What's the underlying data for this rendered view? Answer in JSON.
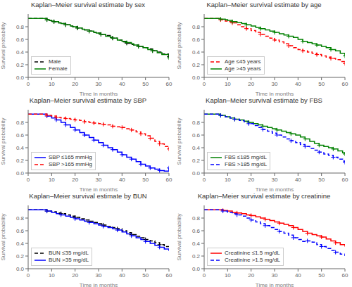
{
  "chart_data": [
    {
      "type": "step",
      "title": "Kaplan–Meier survival estimate by sex",
      "x_label": "Time in months",
      "y_label": "Survival probability",
      "x": [
        0,
        8,
        9,
        10,
        11,
        13,
        14,
        16,
        18,
        19,
        21,
        23,
        24,
        26,
        28,
        29,
        31,
        33,
        35,
        36,
        38,
        40,
        42,
        44,
        45,
        47,
        49,
        51,
        53,
        55,
        57,
        60
      ],
      "censored_x": [
        8,
        11,
        16,
        21,
        26,
        31,
        36,
        42,
        47,
        53,
        60
      ],
      "series": [
        {
          "name": "Male",
          "color": "black",
          "line_style": "dashed",
          "marker": "plus",
          "values": [
            0.93,
            0.91,
            0.9,
            0.89,
            0.88,
            0.86,
            0.85,
            0.83,
            0.81,
            0.8,
            0.78,
            0.76,
            0.75,
            0.73,
            0.71,
            0.7,
            0.68,
            0.66,
            0.63,
            0.62,
            0.59,
            0.56,
            0.54,
            0.52,
            0.51,
            0.49,
            0.47,
            0.45,
            0.42,
            0.4,
            0.37,
            0.33
          ]
        },
        {
          "name": "Female",
          "color": "green",
          "line_style": "solid",
          "marker": "plus",
          "values": [
            0.93,
            0.91,
            0.9,
            0.89,
            0.88,
            0.86,
            0.85,
            0.83,
            0.81,
            0.8,
            0.78,
            0.76,
            0.75,
            0.73,
            0.71,
            0.7,
            0.68,
            0.65,
            0.63,
            0.62,
            0.59,
            0.57,
            0.55,
            0.53,
            0.51,
            0.49,
            0.47,
            0.44,
            0.42,
            0.39,
            0.36,
            0.31
          ]
        }
      ],
      "xlim": [
        0,
        60
      ],
      "ylim": [
        0,
        1
      ],
      "xticks": [
        0,
        10,
        20,
        30,
        40,
        50,
        60
      ],
      "yticks": [
        {
          "value": 0,
          "label": "0.0"
        },
        0.2,
        0.4,
        0.6,
        0.8
      ],
      "legend": "lower left",
      "grid": false
    },
    {
      "type": "step",
      "title": "Kaplan–Meier survival estimate by age",
      "x_label": "Time in months",
      "y_label": "Survival probability",
      "x": [
        0,
        7,
        9,
        10,
        12,
        14,
        16,
        18,
        20,
        22,
        24,
        26,
        28,
        30,
        32,
        34,
        36,
        38,
        40,
        42,
        44,
        46,
        48,
        50,
        52,
        54,
        56,
        58,
        60
      ],
      "censored_x": [
        7,
        12,
        18,
        24,
        30,
        36,
        42,
        48,
        54,
        60
      ],
      "series": [
        {
          "name": "Age ≤45 years",
          "color": "red",
          "line_style": "dashed",
          "marker": "plus",
          "values": [
            0.93,
            0.91,
            0.89,
            0.88,
            0.86,
            0.83,
            0.8,
            0.77,
            0.74,
            0.71,
            0.68,
            0.65,
            0.62,
            0.59,
            0.56,
            0.53,
            0.5,
            0.47,
            0.44,
            0.42,
            0.4,
            0.38,
            0.36,
            0.34,
            0.32,
            0.3,
            0.28,
            0.25,
            0.22
          ]
        },
        {
          "name": "Age >45 years",
          "color": "green",
          "line_style": "solid",
          "marker": "plus",
          "values": [
            0.93,
            0.92,
            0.91,
            0.9,
            0.88,
            0.87,
            0.85,
            0.83,
            0.81,
            0.79,
            0.77,
            0.75,
            0.73,
            0.71,
            0.69,
            0.67,
            0.65,
            0.63,
            0.6,
            0.57,
            0.55,
            0.53,
            0.51,
            0.49,
            0.47,
            0.44,
            0.42,
            0.38,
            0.34
          ]
        }
      ],
      "xlim": [
        0,
        60
      ],
      "ylim": [
        0,
        1
      ],
      "xticks": [
        0,
        10,
        20,
        30,
        40,
        50,
        60
      ],
      "yticks": [
        {
          "value": 0,
          "label": "0.0"
        },
        0.2,
        0.4,
        0.6,
        0.8
      ],
      "legend": "lower left",
      "grid": false
    },
    {
      "type": "step",
      "title": "Kaplan–Meier survival estimate by SBP",
      "x_label": "Time in months",
      "y_label": "Survival probability",
      "x": [
        0,
        8,
        10,
        12,
        14,
        16,
        18,
        20,
        22,
        24,
        26,
        28,
        30,
        32,
        34,
        36,
        38,
        40,
        42,
        44,
        46,
        48,
        50,
        52,
        54,
        56,
        58,
        60
      ],
      "censored_x": [
        8,
        12,
        16,
        20,
        24,
        28,
        32,
        36,
        40,
        44,
        48,
        52,
        56,
        60
      ],
      "series": [
        {
          "name": "SBP ≤165 mmHg",
          "color": "blue",
          "line_style": "solid",
          "marker": "plus",
          "values": [
            0.93,
            0.9,
            0.87,
            0.84,
            0.8,
            0.76,
            0.72,
            0.68,
            0.64,
            0.6,
            0.56,
            0.52,
            0.48,
            0.44,
            0.4,
            0.37,
            0.33,
            0.29,
            0.25,
            0.22,
            0.18,
            0.14,
            0.11,
            0.08,
            0.06,
            0.04,
            0.03,
            0.08
          ]
        },
        {
          "name": "SBP >165 mmHg",
          "color": "red",
          "line_style": "dashed",
          "marker": "plus",
          "values": [
            0.93,
            0.91,
            0.9,
            0.88,
            0.87,
            0.86,
            0.85,
            0.84,
            0.83,
            0.81,
            0.8,
            0.79,
            0.78,
            0.77,
            0.76,
            0.74,
            0.73,
            0.72,
            0.7,
            0.68,
            0.65,
            0.62,
            0.59,
            0.55,
            0.5,
            0.46,
            0.42,
            0.38
          ]
        }
      ],
      "xlim": [
        0,
        60
      ],
      "ylim": [
        0,
        1
      ],
      "xticks": [
        0,
        10,
        20,
        30,
        40,
        50,
        60
      ],
      "yticks": [
        {
          "value": 0,
          "label": "0.0"
        },
        0.2,
        0.4,
        0.6,
        0.8
      ],
      "legend": "lower left",
      "grid": false
    },
    {
      "type": "step",
      "title": "Kaplan–Meier survival estimate by FBS",
      "x_label": "Time in months",
      "y_label": "Survival probability",
      "x": [
        0,
        7,
        9,
        11,
        13,
        15,
        17,
        19,
        21,
        23,
        25,
        27,
        29,
        31,
        33,
        35,
        37,
        39,
        41,
        43,
        45,
        47,
        49,
        51,
        53,
        55,
        57,
        59,
        60
      ],
      "censored_x": [
        7,
        13,
        19,
        25,
        31,
        37,
        43,
        49,
        55,
        60
      ],
      "series": [
        {
          "name": "FBS ≤185 mg/dL",
          "color": "green",
          "line_style": "solid",
          "marker": "plus",
          "values": [
            0.93,
            0.91,
            0.89,
            0.87,
            0.85,
            0.84,
            0.82,
            0.8,
            0.78,
            0.76,
            0.74,
            0.72,
            0.7,
            0.68,
            0.66,
            0.64,
            0.62,
            0.6,
            0.57,
            0.54,
            0.5,
            0.47,
            0.44,
            0.42,
            0.4,
            0.38,
            0.35,
            0.32,
            0.3
          ]
        },
        {
          "name": "FBS >185 mg/dL",
          "color": "blue",
          "line_style": "dashed",
          "marker": "plus",
          "values": [
            0.93,
            0.91,
            0.89,
            0.87,
            0.85,
            0.83,
            0.81,
            0.78,
            0.75,
            0.72,
            0.69,
            0.66,
            0.63,
            0.6,
            0.57,
            0.54,
            0.51,
            0.48,
            0.45,
            0.42,
            0.39,
            0.36,
            0.33,
            0.3,
            0.28,
            0.25,
            0.22,
            0.19,
            0.17
          ]
        }
      ],
      "xlim": [
        0,
        60
      ],
      "ylim": [
        0,
        1
      ],
      "xticks": [
        0,
        10,
        20,
        30,
        40,
        50,
        60
      ],
      "yticks": [
        {
          "value": 0,
          "label": "0.0"
        },
        0.2,
        0.4,
        0.6,
        0.8
      ],
      "legend": "lower left",
      "grid": false
    },
    {
      "type": "step",
      "title": "Kaplan–Meier survival estimate by BUN",
      "x_label": "Time in months",
      "y_label": "Survival probability",
      "x": [
        0,
        8,
        10,
        12,
        14,
        16,
        18,
        20,
        22,
        24,
        26,
        28,
        30,
        32,
        34,
        36,
        38,
        40,
        42,
        44,
        46,
        48,
        50,
        52,
        54,
        56,
        58,
        60
      ],
      "censored_x": [
        8,
        14,
        20,
        26,
        32,
        38,
        44,
        50,
        56
      ],
      "series": [
        {
          "name": "BUN ≤35 mg/dL",
          "color": "black",
          "line_style": "dashed",
          "marker": "plus",
          "values": [
            0.93,
            0.91,
            0.9,
            0.88,
            0.87,
            0.85,
            0.83,
            0.81,
            0.79,
            0.77,
            0.75,
            0.73,
            0.71,
            0.69,
            0.67,
            0.65,
            0.63,
            0.6,
            0.57,
            0.54,
            0.51,
            0.49,
            0.46,
            0.44,
            0.41,
            0.38,
            0.35,
            0.32
          ]
        },
        {
          "name": "BUN >35 mg/dL",
          "color": "blue",
          "line_style": "solid",
          "marker": "plus",
          "values": [
            0.93,
            0.91,
            0.89,
            0.87,
            0.85,
            0.83,
            0.81,
            0.79,
            0.77,
            0.75,
            0.73,
            0.71,
            0.69,
            0.67,
            0.65,
            0.63,
            0.61,
            0.58,
            0.55,
            0.52,
            0.49,
            0.46,
            0.43,
            0.4,
            0.37,
            0.34,
            0.31,
            0.28
          ]
        }
      ],
      "xlim": [
        0,
        60
      ],
      "ylim": [
        0,
        1
      ],
      "xticks": [
        0,
        10,
        20,
        30,
        40,
        50,
        60
      ],
      "yticks": [
        {
          "value": 0,
          "label": "0.0"
        },
        0.2,
        0.4,
        0.6,
        0.8
      ],
      "legend": "lower left",
      "grid": false
    },
    {
      "type": "step",
      "title": "Kaplan–Meier survival estimate by creatinine",
      "x_label": "Time in months",
      "y_label": "Survival probability",
      "x": [
        0,
        8,
        10,
        12,
        14,
        16,
        18,
        20,
        22,
        24,
        26,
        28,
        30,
        32,
        34,
        36,
        38,
        40,
        42,
        44,
        46,
        48,
        50,
        52,
        54,
        56,
        58,
        60
      ],
      "censored_x": [
        8,
        14,
        20,
        26,
        32,
        38,
        44,
        50,
        56
      ],
      "series": [
        {
          "name": "Creatinine ≤1.5 mg/dL",
          "color": "red",
          "line_style": "solid",
          "marker": "plus",
          "values": [
            0.93,
            0.92,
            0.91,
            0.89,
            0.88,
            0.87,
            0.85,
            0.84,
            0.82,
            0.8,
            0.78,
            0.76,
            0.74,
            0.72,
            0.7,
            0.68,
            0.65,
            0.62,
            0.59,
            0.56,
            0.54,
            0.52,
            0.5,
            0.47,
            0.44,
            0.41,
            0.38,
            0.35
          ]
        },
        {
          "name": "Creatinine >1.5 mg/dL",
          "color": "blue",
          "line_style": "dashed",
          "marker": "plus",
          "values": [
            0.93,
            0.91,
            0.89,
            0.87,
            0.85,
            0.83,
            0.8,
            0.77,
            0.74,
            0.71,
            0.68,
            0.65,
            0.62,
            0.59,
            0.56,
            0.53,
            0.49,
            0.46,
            0.43,
            0.44,
            0.42,
            0.38,
            0.35,
            0.32,
            0.29,
            0.26,
            0.23,
            0.2
          ]
        }
      ],
      "xlim": [
        0,
        60
      ],
      "ylim": [
        0,
        1
      ],
      "xticks": [
        0,
        10,
        20,
        30,
        40,
        50,
        60
      ],
      "yticks": [
        {
          "value": 0,
          "label": "0.0"
        },
        0.2,
        0.4,
        0.6,
        0.8
      ],
      "legend": "lower left",
      "grid": false
    }
  ]
}
